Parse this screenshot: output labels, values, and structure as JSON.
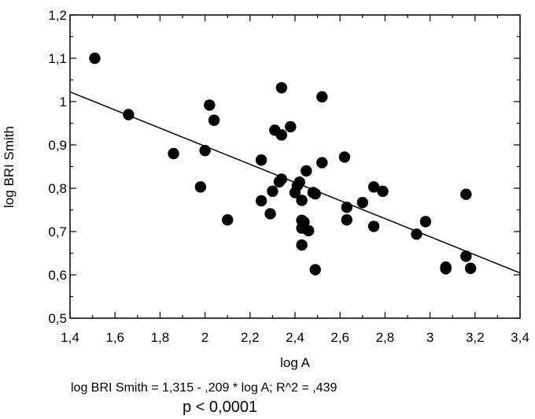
{
  "chart_data": {
    "type": "scatter",
    "xlabel": "log A",
    "ylabel": "log BRI Smith",
    "xlim": [
      1.4,
      3.4
    ],
    "ylim": [
      0.5,
      1.2
    ],
    "x_ticks": [
      1.4,
      1.6,
      1.8,
      2.0,
      2.2,
      2.4,
      2.6,
      2.8,
      3.0,
      3.2,
      3.4
    ],
    "x_tick_labels": [
      "1,4",
      "1,6",
      "1,8",
      "2",
      "2,2",
      "2,4",
      "2,6",
      "2,8",
      "3",
      "3,2",
      "3,4"
    ],
    "y_ticks": [
      0.5,
      0.6,
      0.7,
      0.8,
      0.9,
      1.0,
      1.1,
      1.2
    ],
    "y_tick_labels": [
      "0,5",
      "0,6",
      "0,7",
      "0,8",
      "0,9",
      "1",
      "1,1",
      "1,2"
    ],
    "grid": false,
    "marker_color": "#000000",
    "points": [
      {
        "x": 1.51,
        "y": 1.1
      },
      {
        "x": 1.66,
        "y": 0.97
      },
      {
        "x": 1.86,
        "y": 0.88
      },
      {
        "x": 1.98,
        "y": 0.803
      },
      {
        "x": 2.0,
        "y": 0.887
      },
      {
        "x": 2.02,
        "y": 0.992
      },
      {
        "x": 2.04,
        "y": 0.957
      },
      {
        "x": 2.1,
        "y": 0.727
      },
      {
        "x": 2.25,
        "y": 0.865
      },
      {
        "x": 2.25,
        "y": 0.771
      },
      {
        "x": 2.29,
        "y": 0.741
      },
      {
        "x": 2.3,
        "y": 0.793
      },
      {
        "x": 2.31,
        "y": 0.934
      },
      {
        "x": 2.33,
        "y": 0.815
      },
      {
        "x": 2.34,
        "y": 0.923
      },
      {
        "x": 2.34,
        "y": 0.821
      },
      {
        "x": 2.34,
        "y": 1.032
      },
      {
        "x": 2.38,
        "y": 0.942
      },
      {
        "x": 2.4,
        "y": 0.79
      },
      {
        "x": 2.41,
        "y": 0.806
      },
      {
        "x": 2.42,
        "y": 0.814
      },
      {
        "x": 2.43,
        "y": 0.772
      },
      {
        "x": 2.43,
        "y": 0.726
      },
      {
        "x": 2.43,
        "y": 0.708
      },
      {
        "x": 2.43,
        "y": 0.669
      },
      {
        "x": 2.44,
        "y": 0.722
      },
      {
        "x": 2.45,
        "y": 0.84
      },
      {
        "x": 2.46,
        "y": 0.702
      },
      {
        "x": 2.48,
        "y": 0.79
      },
      {
        "x": 2.49,
        "y": 0.612
      },
      {
        "x": 2.49,
        "y": 0.787
      },
      {
        "x": 2.52,
        "y": 1.011
      },
      {
        "x": 2.52,
        "y": 0.859
      },
      {
        "x": 2.62,
        "y": 0.872
      },
      {
        "x": 2.63,
        "y": 0.756
      },
      {
        "x": 2.63,
        "y": 0.727
      },
      {
        "x": 2.7,
        "y": 0.767
      },
      {
        "x": 2.75,
        "y": 0.803
      },
      {
        "x": 2.75,
        "y": 0.712
      },
      {
        "x": 2.79,
        "y": 0.793
      },
      {
        "x": 2.94,
        "y": 0.694
      },
      {
        "x": 2.98,
        "y": 0.723
      },
      {
        "x": 3.07,
        "y": 0.618
      },
      {
        "x": 3.07,
        "y": 0.614
      },
      {
        "x": 3.16,
        "y": 0.786
      },
      {
        "x": 3.16,
        "y": 0.643
      },
      {
        "x": 3.18,
        "y": 0.615
      }
    ],
    "regression": {
      "intercept": 1.315,
      "slope": -0.209,
      "x_range": [
        1.4,
        3.4
      ]
    }
  },
  "equation_text": "log BRI Smith = 1,315 - ,209 * log A; R^2 = ,439",
  "pvalue_text": "p < 0,0001"
}
